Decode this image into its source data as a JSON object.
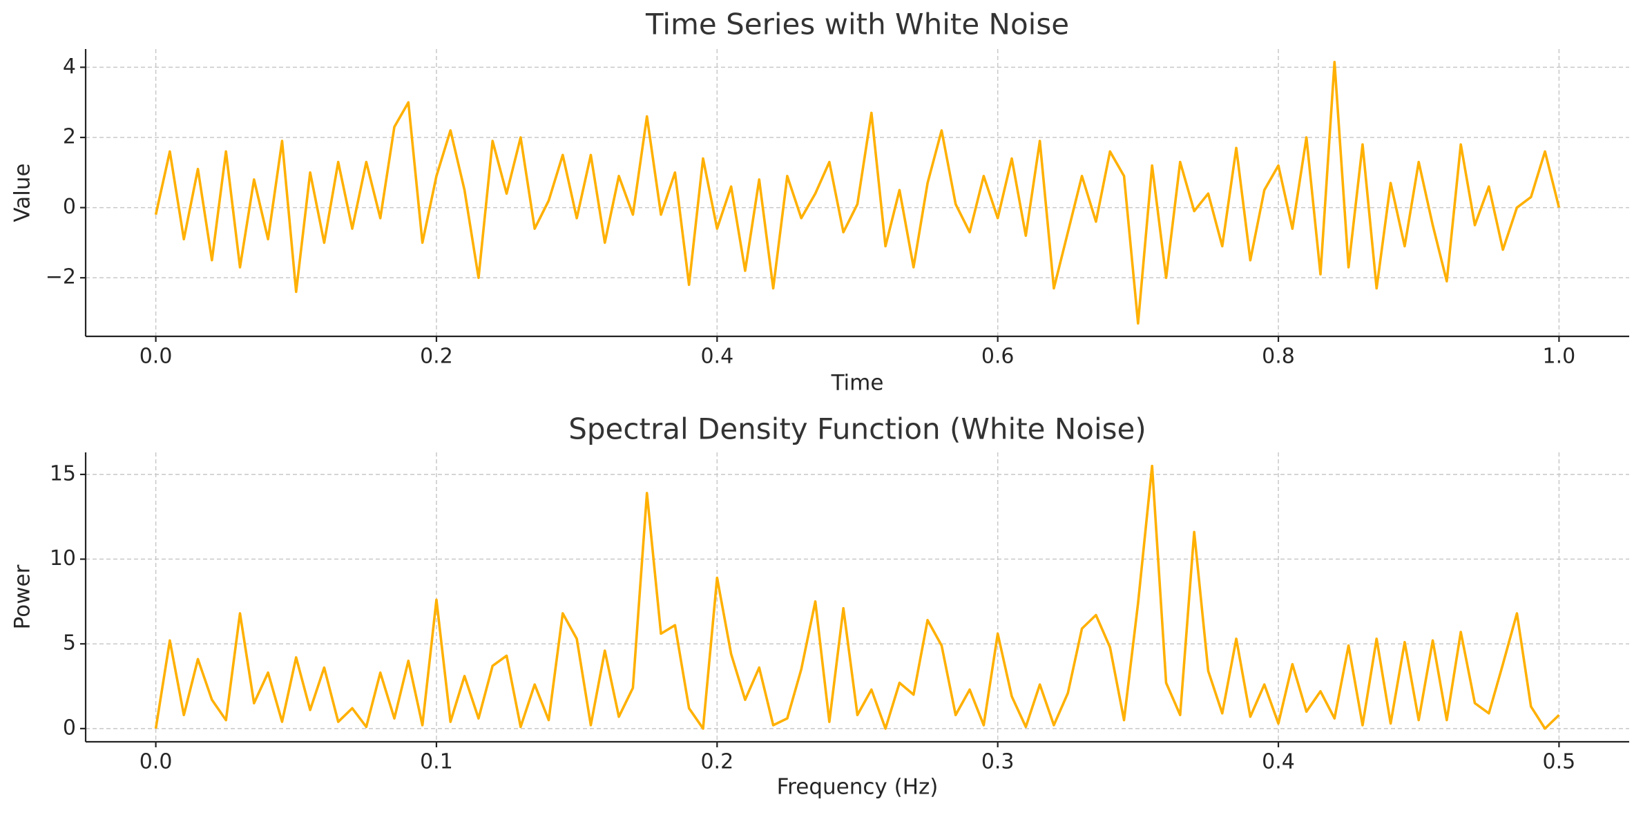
{
  "chart_data": [
    {
      "type": "line",
      "title": "Time Series with White Noise",
      "xlabel": "Time",
      "ylabel": "Value",
      "color": "#ffb000",
      "grid": true,
      "x": [
        0,
        0.01,
        0.02,
        0.03,
        0.04,
        0.05,
        0.06,
        0.07,
        0.08,
        0.09,
        0.1,
        0.11,
        0.12,
        0.13,
        0.14,
        0.15,
        0.16,
        0.17,
        0.18,
        0.19,
        0.2,
        0.21,
        0.22,
        0.23,
        0.24,
        0.25,
        0.26,
        0.27,
        0.28,
        0.29,
        0.3,
        0.31,
        0.32,
        0.33,
        0.34,
        0.35,
        0.36,
        0.37,
        0.38,
        0.39,
        0.4,
        0.41,
        0.42,
        0.43,
        0.44,
        0.45,
        0.46,
        0.47,
        0.48,
        0.49,
        0.5,
        0.51,
        0.52,
        0.53,
        0.54,
        0.55,
        0.56,
        0.57,
        0.58,
        0.59,
        0.6,
        0.61,
        0.62,
        0.63,
        0.64,
        0.65,
        0.66,
        0.67,
        0.68,
        0.69,
        0.7,
        0.71,
        0.72,
        0.73,
        0.74,
        0.75,
        0.76,
        0.77,
        0.78,
        0.79,
        0.8,
        0.81,
        0.82,
        0.83,
        0.84,
        0.85,
        0.86,
        0.87,
        0.88,
        0.89,
        0.9,
        0.91,
        0.92,
        0.93,
        0.94,
        0.95,
        0.96,
        0.97,
        0.98,
        0.99,
        1
      ],
      "values": [
        -0.2,
        1.6,
        -0.9,
        1.1,
        -1.5,
        1.6,
        -1.7,
        0.8,
        -0.9,
        1.9,
        -2.4,
        1.0,
        -1.0,
        1.3,
        -0.6,
        1.3,
        -0.3,
        2.3,
        3.0,
        -1.0,
        0.9,
        2.2,
        0.5,
        -2.0,
        1.9,
        0.4,
        2.0,
        -0.6,
        0.2,
        1.5,
        -0.3,
        1.5,
        -1.0,
        0.9,
        -0.2,
        2.6,
        -0.2,
        1.0,
        -2.2,
        1.4,
        -0.6,
        0.6,
        -1.8,
        0.8,
        -2.3,
        0.9,
        -0.3,
        0.4,
        1.3,
        -0.7,
        0.1,
        2.7,
        -1.1,
        0.5,
        -1.7,
        0.7,
        2.2,
        0.1,
        -0.7,
        0.9,
        -0.3,
        1.4,
        -0.8,
        1.9,
        -2.3,
        -0.7,
        0.9,
        -0.4,
        1.6,
        0.9,
        -3.3,
        1.2,
        -2.0,
        1.3,
        -0.1,
        0.4,
        -1.1,
        1.7,
        -1.5,
        0.5,
        1.2,
        -0.6,
        2.0,
        -1.9,
        4.15,
        -1.7,
        1.8,
        -2.3,
        0.7,
        -1.1,
        1.3,
        -0.5,
        -2.1,
        1.8,
        -0.5,
        0.6,
        -1.2,
        0.0,
        0.3,
        1.6,
        0.0
      ],
      "xlim": [
        -0.05,
        1.05
      ],
      "ylim": [
        -3.67,
        4.52
      ],
      "xticks": [
        {
          "value": 0,
          "label": "0.0"
        },
        0.2,
        0.4,
        0.6,
        0.8,
        {
          "value": 1,
          "label": "1.0"
        }
      ],
      "yticks": [
        {
          "value": -2,
          "label": "−2"
        },
        0,
        2,
        4
      ]
    },
    {
      "type": "line",
      "title": "Spectral Density Function (White Noise)",
      "xlabel": "Frequency (Hz)",
      "ylabel": "Power",
      "color": "#ffb000",
      "grid": true,
      "x": [
        0,
        0.005,
        0.01,
        0.015,
        0.02,
        0.025,
        0.03,
        0.035,
        0.04,
        0.045,
        0.05,
        0.055,
        0.06,
        0.065,
        0.07,
        0.075,
        0.08,
        0.085,
        0.09,
        0.095,
        0.1,
        0.105,
        0.11,
        0.115,
        0.12,
        0.125,
        0.13,
        0.135,
        0.14,
        0.145,
        0.15,
        0.155,
        0.16,
        0.165,
        0.17,
        0.175,
        0.18,
        0.185,
        0.19,
        0.195,
        0.2,
        0.205,
        0.21,
        0.215,
        0.22,
        0.225,
        0.23,
        0.235,
        0.24,
        0.245,
        0.25,
        0.255,
        0.26,
        0.265,
        0.27,
        0.275,
        0.28,
        0.285,
        0.29,
        0.295,
        0.3,
        0.305,
        0.31,
        0.315,
        0.32,
        0.325,
        0.33,
        0.335,
        0.34,
        0.345,
        0.35,
        0.355,
        0.36,
        0.365,
        0.37,
        0.375,
        0.38,
        0.385,
        0.39,
        0.395,
        0.4,
        0.405,
        0.41,
        0.415,
        0.42,
        0.425,
        0.43,
        0.435,
        0.44,
        0.445,
        0.45,
        0.455,
        0.46,
        0.465,
        0.47,
        0.475,
        0.48,
        0.485,
        0.49,
        0.495,
        0.5
      ],
      "values": [
        0,
        5.2,
        0.8,
        4.1,
        1.7,
        0.5,
        6.8,
        1.5,
        3.3,
        0.4,
        4.2,
        1.1,
        3.6,
        0.4,
        1.2,
        0.1,
        3.3,
        0.6,
        4.0,
        0.2,
        7.6,
        0.4,
        3.1,
        0.6,
        3.7,
        4.3,
        0.1,
        2.6,
        0.5,
        6.8,
        5.3,
        0.2,
        4.6,
        0.7,
        2.4,
        13.9,
        5.6,
        6.1,
        1.2,
        0.0,
        8.9,
        4.4,
        1.7,
        3.6,
        0.2,
        0.6,
        3.5,
        7.5,
        0.4,
        7.1,
        0.8,
        2.3,
        0.0,
        2.7,
        2.0,
        6.4,
        4.9,
        0.8,
        2.3,
        0.2,
        5.6,
        1.9,
        0.1,
        2.6,
        0.2,
        2.1,
        5.9,
        6.7,
        4.8,
        0.5,
        7.4,
        15.5,
        2.7,
        0.8,
        11.6,
        3.4,
        0.9,
        5.3,
        0.7,
        2.6,
        0.3,
        3.8,
        1.0,
        2.2,
        0.6,
        4.9,
        0.2,
        5.3,
        0.3,
        5.1,
        0.5,
        5.2,
        0.5,
        5.7,
        1.5,
        0.9,
        3.8,
        6.8,
        1.3,
        0.0,
        0.8
      ],
      "xlim": [
        -0.025,
        0.525
      ],
      "ylim": [
        -0.78,
        16.3
      ],
      "xticks": [
        {
          "value": 0,
          "label": "0.0"
        },
        0.1,
        0.2,
        0.3,
        0.4,
        0.5
      ],
      "yticks": [
        0,
        5,
        10,
        15
      ]
    }
  ]
}
